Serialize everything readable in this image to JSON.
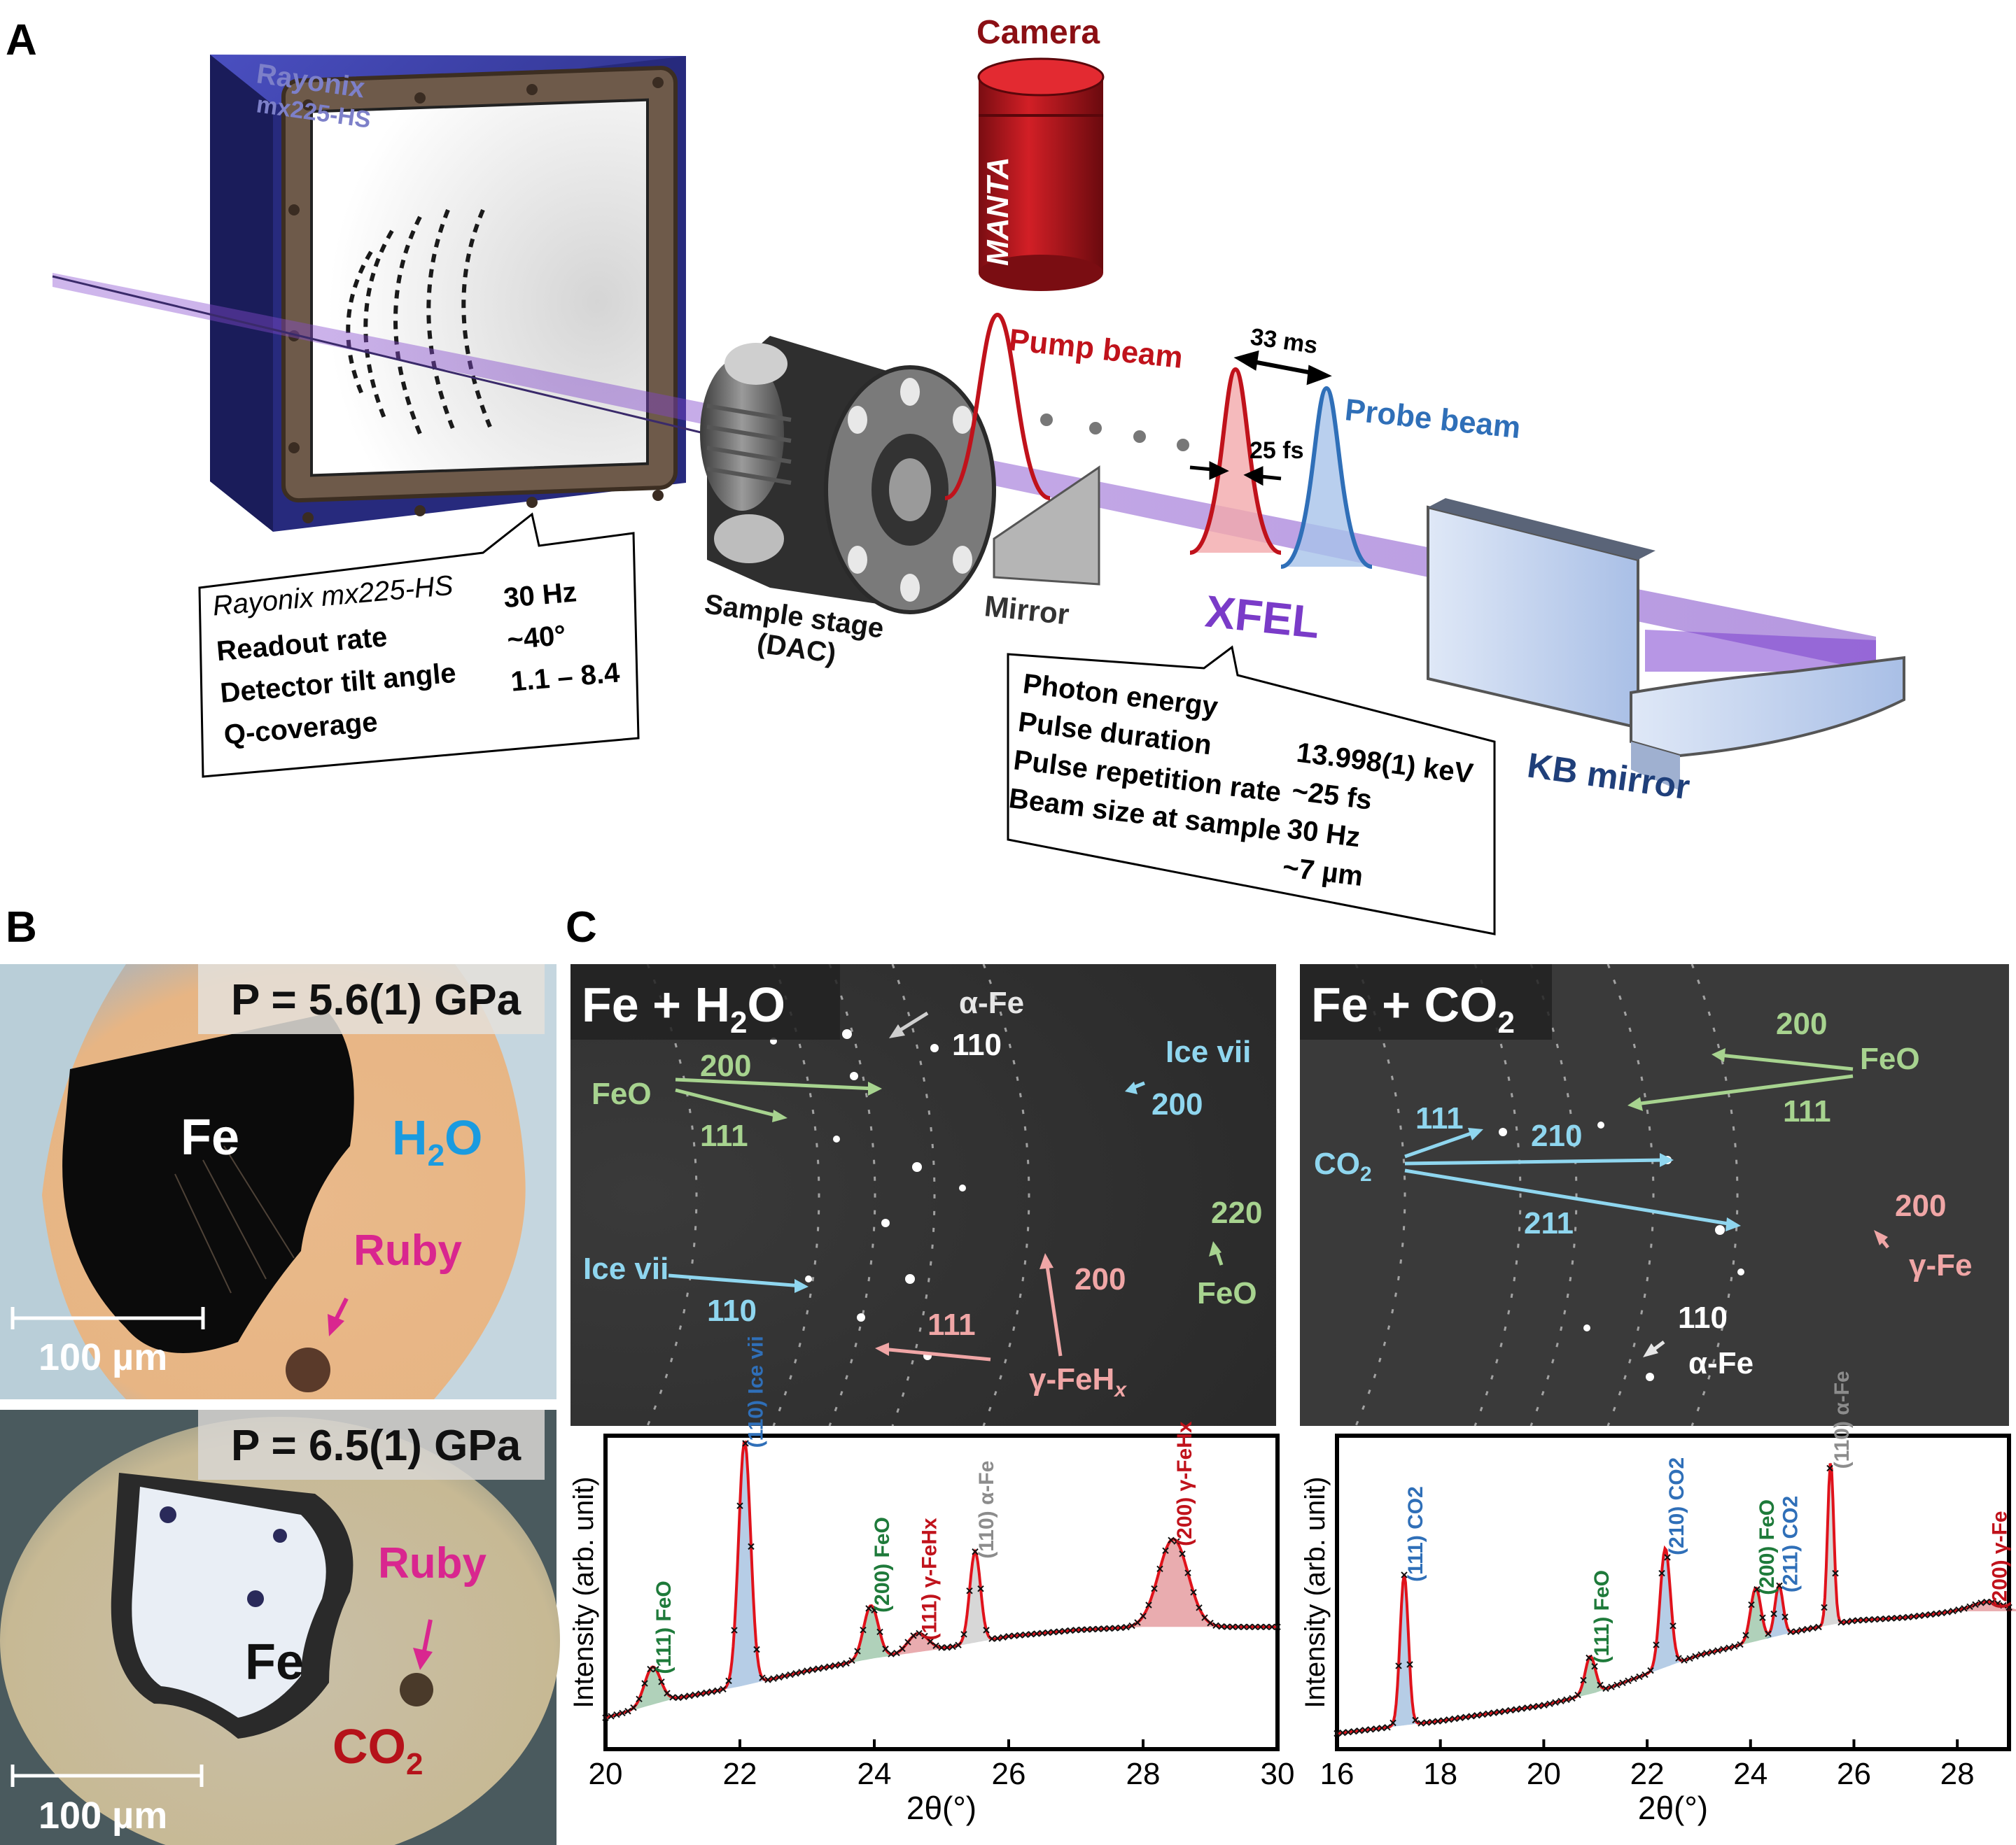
{
  "panels": {
    "a": "A",
    "b": "B",
    "c": "C"
  },
  "setup": {
    "detector_brand": "Rayonix",
    "detector_model": "mx225-HS",
    "camera_label": "Camera",
    "camera_brand": "MANTA",
    "pump_beam": "Pump beam",
    "probe_beam": "Probe beam",
    "delay": "33 ms",
    "pulse_width": "25 fs",
    "mirror": "Mirror",
    "sample_stage": "Sample stage",
    "dac": "(DAC)",
    "xfel": "XFEL",
    "kb_mirror": "KB mirror",
    "colors": {
      "pump": "#c0121b",
      "probe": "#2f6fb8",
      "beam": "#8a4fd0",
      "detector": "#2c2f8a"
    }
  },
  "detector_box": {
    "title": "Rayonix mx225-HS",
    "rows": [
      {
        "label": "Readout rate",
        "value": "30 Hz"
      },
      {
        "label": "Detector tilt angle",
        "value": "~40°"
      },
      {
        "label": "Q-coverage",
        "value": "1.1 – 8.4"
      }
    ]
  },
  "xfel_box": {
    "rows": [
      {
        "label": "Photon energy",
        "value": "13.998(1) keV"
      },
      {
        "label": "Pulse duration",
        "value": "~25 fs"
      },
      {
        "label": "Pulse repetition rate",
        "value": "30 Hz"
      },
      {
        "label": "Beam size at sample",
        "value": "~7 µm"
      }
    ]
  },
  "photos": {
    "top": {
      "pressure": "P = 5.6(1) GPa",
      "fe": "Fe",
      "medium_main": "H",
      "medium_sub": "2",
      "medium_end": "O",
      "ruby": "Ruby",
      "scale": "100 µm"
    },
    "bottom": {
      "pressure": "P = 6.5(1) GPa",
      "fe": "Fe",
      "medium_main": "CO",
      "medium_sub": "2",
      "ruby": "Ruby",
      "scale": "100 µm"
    }
  },
  "patterns": {
    "left": {
      "title_main": "Fe + H",
      "title_sub": "2",
      "title_end": "O",
      "labels": {
        "alpha_fe": "α-Fe",
        "alpha_110": "110",
        "ice_top": "Ice vii",
        "ice_top_hkl": "200",
        "feo": "FeO",
        "feo_200": "200",
        "feo_111": "111",
        "feo_220": "220",
        "feo_b": "FeO",
        "ice_bot": "Ice vii",
        "ice_bot_hkl": "110",
        "gfe_200": "200",
        "gfe_111": "111",
        "gfe": "γ-FeH",
        "gfe_sub": "x"
      }
    },
    "right": {
      "title_main": "Fe + CO",
      "title_sub": "2",
      "labels": {
        "feo_200": "200",
        "feo": "FeO",
        "feo_111": "111",
        "co2_111": "111",
        "co2": "CO",
        "co2_sub": "2",
        "co2_210": "210",
        "co2_211": "211",
        "gfe_200": "200",
        "gfe": "γ-Fe",
        "afe_110": "110",
        "afe": "α-Fe"
      }
    }
  },
  "chart_data": [
    {
      "type": "line",
      "xlabel": "2θ(°)",
      "ylabel": "Intensity (arb. unit)",
      "xlim": [
        20,
        30
      ],
      "ylim": [
        0,
        1
      ],
      "xticks": [
        20,
        22,
        24,
        26,
        28,
        30
      ],
      "baseline": [
        [
          20.0,
          0.1
        ],
        [
          21.0,
          0.16
        ],
        [
          22.0,
          0.2
        ],
        [
          23.0,
          0.25
        ],
        [
          24.0,
          0.29
        ],
        [
          25.0,
          0.32
        ],
        [
          26.0,
          0.36
        ],
        [
          27.0,
          0.38
        ],
        [
          28.0,
          0.39
        ],
        [
          29.0,
          0.39
        ],
        [
          30.0,
          0.39
        ]
      ],
      "peaks": [
        {
          "pos": 20.7,
          "height": 0.12,
          "width": 0.12,
          "color": "#1e7a3a",
          "hkl": "(111)",
          "phase": "FeO"
        },
        {
          "pos": 22.07,
          "height": 0.78,
          "width": 0.09,
          "color": "#2f6fb8",
          "hkl": "(110)",
          "phase": "Ice vii"
        },
        {
          "pos": 23.95,
          "height": 0.17,
          "width": 0.11,
          "color": "#1e7a3a",
          "hkl": "(200)",
          "phase": "FeO"
        },
        {
          "pos": 24.65,
          "height": 0.06,
          "width": 0.15,
          "color": "#c0121b",
          "hkl": "(111)",
          "phase": "γ-FeHx"
        },
        {
          "pos": 25.5,
          "height": 0.29,
          "width": 0.08,
          "color": "#8c8c8c",
          "hkl": "(110)",
          "phase": "α-Fe"
        },
        {
          "pos": 28.45,
          "height": 0.28,
          "width": 0.22,
          "color": "#c0121b",
          "hkl": "(200)",
          "phase": "γ-FeHx"
        }
      ]
    },
    {
      "type": "line",
      "xlabel": "2θ(°)",
      "ylabel": "Intensity (arb. unit)",
      "xlim": [
        16,
        29
      ],
      "ylim": [
        0,
        1
      ],
      "xticks": [
        16,
        18,
        20,
        22,
        24,
        26,
        28
      ],
      "baseline": [
        [
          16.0,
          0.05
        ],
        [
          18.0,
          0.09
        ],
        [
          20.0,
          0.14
        ],
        [
          21.0,
          0.18
        ],
        [
          22.0,
          0.24
        ],
        [
          23.0,
          0.3
        ],
        [
          24.0,
          0.34
        ],
        [
          25.0,
          0.38
        ],
        [
          26.0,
          0.41
        ],
        [
          27.0,
          0.42
        ],
        [
          28.0,
          0.44
        ],
        [
          29.0,
          0.44
        ]
      ],
      "peaks": [
        {
          "pos": 17.3,
          "height": 0.48,
          "width": 0.08,
          "color": "#2f6fb8",
          "hkl": "(111)",
          "phase": "CO2"
        },
        {
          "pos": 20.9,
          "height": 0.12,
          "width": 0.1,
          "color": "#1e7a3a",
          "hkl": "(111)",
          "phase": "FeO"
        },
        {
          "pos": 22.35,
          "height": 0.38,
          "width": 0.1,
          "color": "#2f6fb8",
          "hkl": "(210)",
          "phase": "CO2"
        },
        {
          "pos": 24.1,
          "height": 0.17,
          "width": 0.1,
          "color": "#1e7a3a",
          "hkl": "(200)",
          "phase": "FeO"
        },
        {
          "pos": 24.55,
          "height": 0.16,
          "width": 0.08,
          "color": "#2f6fb8",
          "hkl": "(211)",
          "phase": "CO2"
        },
        {
          "pos": 25.55,
          "height": 0.52,
          "width": 0.06,
          "color": "#8c8c8c",
          "hkl": "(110)",
          "phase": "α-Fe"
        },
        {
          "pos": 28.6,
          "height": 0.03,
          "width": 0.3,
          "color": "#c0121b",
          "hkl": "(200)",
          "phase": "γ-Fe"
        }
      ]
    }
  ]
}
